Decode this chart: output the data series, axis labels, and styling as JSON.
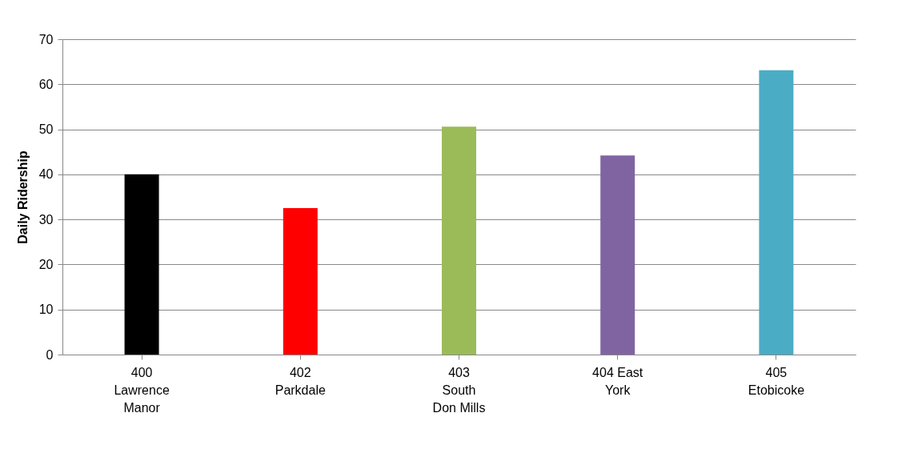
{
  "chart_data": {
    "type": "bar",
    "ylabel": "Daily Ridership",
    "categories": [
      "400 Lawrence Manor",
      "402 Parkdale",
      "403 South Don Mills",
      "404 East York",
      "405 Etobicoke"
    ],
    "values": [
      40,
      32.5,
      50.6,
      44.2,
      63.1
    ],
    "colors": [
      "#000000",
      "#ff0000",
      "#9bbb59",
      "#8064a2",
      "#4bacc6"
    ],
    "ylim": [
      0,
      70
    ],
    "yticks": [
      0,
      10,
      20,
      30,
      40,
      50,
      60,
      70
    ],
    "grid": "y"
  }
}
